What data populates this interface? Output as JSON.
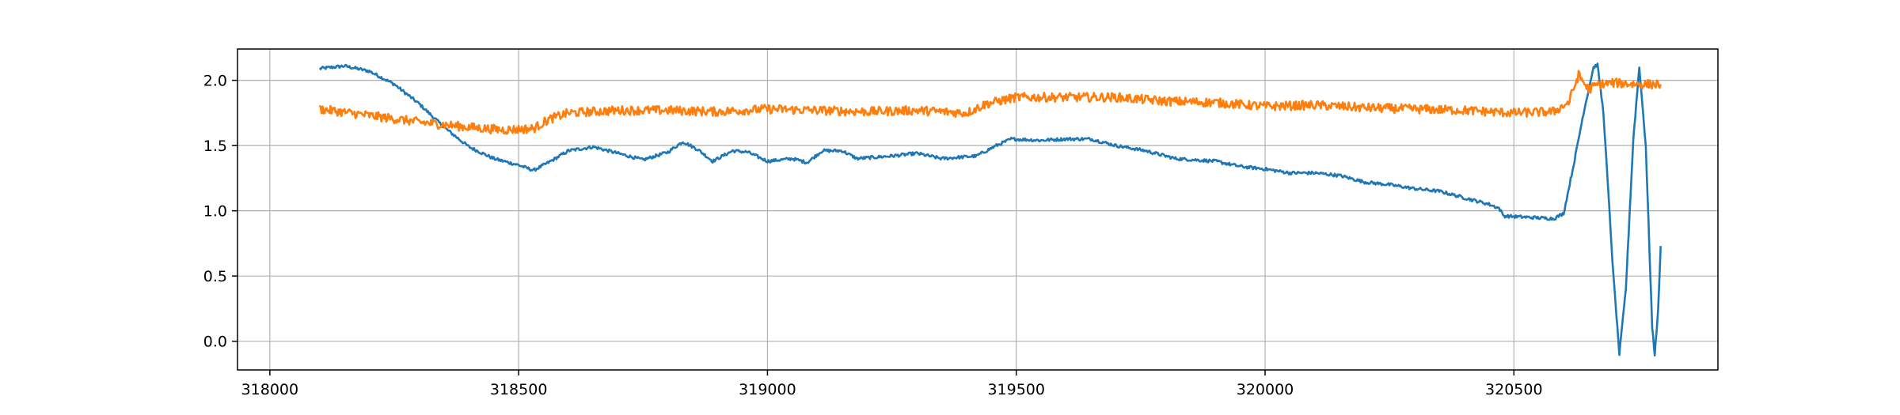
{
  "chart_data": {
    "type": "line",
    "title": "",
    "xlabel": "",
    "ylabel": "",
    "xlim": [
      317935,
      320910
    ],
    "ylim": [
      -0.22,
      2.24
    ],
    "grid": true,
    "legend": "none",
    "x_ticks": [
      318000,
      318500,
      319000,
      319500,
      320000,
      320500
    ],
    "x_tick_labels": [
      "318000",
      "318500",
      "319000",
      "319500",
      "320000",
      "320500"
    ],
    "y_ticks": [
      0.0,
      0.5,
      1.0,
      1.5,
      2.0
    ],
    "y_tick_labels": [
      "0.0",
      "0.5",
      "1.0",
      "1.5",
      "2.0"
    ],
    "series": [
      {
        "color": "#1f77b4",
        "noise": 0.012,
        "points": [
          [
            318100,
            2.09
          ],
          [
            318150,
            2.11
          ],
          [
            318200,
            2.07
          ],
          [
            318250,
            1.97
          ],
          [
            318300,
            1.82
          ],
          [
            318350,
            1.64
          ],
          [
            318400,
            1.49
          ],
          [
            318450,
            1.4
          ],
          [
            318500,
            1.35
          ],
          [
            318530,
            1.31
          ],
          [
            318560,
            1.37
          ],
          [
            318600,
            1.46
          ],
          [
            318650,
            1.49
          ],
          [
            318700,
            1.44
          ],
          [
            318750,
            1.39
          ],
          [
            318800,
            1.45
          ],
          [
            318830,
            1.53
          ],
          [
            318860,
            1.47
          ],
          [
            318890,
            1.38
          ],
          [
            318930,
            1.46
          ],
          [
            318960,
            1.45
          ],
          [
            319000,
            1.38
          ],
          [
            319050,
            1.4
          ],
          [
            319080,
            1.37
          ],
          [
            319110,
            1.46
          ],
          [
            319150,
            1.46
          ],
          [
            319180,
            1.4
          ],
          [
            319250,
            1.42
          ],
          [
            319300,
            1.44
          ],
          [
            319350,
            1.4
          ],
          [
            319420,
            1.42
          ],
          [
            319460,
            1.5
          ],
          [
            319490,
            1.55
          ],
          [
            319550,
            1.54
          ],
          [
            319600,
            1.55
          ],
          [
            319650,
            1.55
          ],
          [
            319700,
            1.5
          ],
          [
            319760,
            1.46
          ],
          [
            319820,
            1.4
          ],
          [
            319900,
            1.38
          ],
          [
            319950,
            1.34
          ],
          [
            320000,
            1.32
          ],
          [
            320050,
            1.29
          ],
          [
            320100,
            1.29
          ],
          [
            320150,
            1.27
          ],
          [
            320200,
            1.22
          ],
          [
            320250,
            1.2
          ],
          [
            320300,
            1.17
          ],
          [
            320350,
            1.15
          ],
          [
            320400,
            1.1
          ],
          [
            320450,
            1.05
          ],
          [
            320470,
            1.02
          ],
          [
            320480,
            0.96
          ],
          [
            320530,
            0.95
          ],
          [
            320580,
            0.94
          ],
          [
            320600,
            0.98
          ],
          [
            320620,
            1.35
          ],
          [
            320640,
            1.75
          ],
          [
            320660,
            2.1
          ],
          [
            320668,
            2.12
          ],
          [
            320680,
            1.75
          ],
          [
            320700,
            0.5
          ],
          [
            320712,
            -0.1
          ],
          [
            320725,
            0.4
          ],
          [
            320740,
            1.55
          ],
          [
            320752,
            2.1
          ],
          [
            320765,
            1.5
          ],
          [
            320778,
            0.1
          ],
          [
            320783,
            -0.1
          ],
          [
            320790,
            0.25
          ],
          [
            320795,
            0.73
          ]
        ]
      },
      {
        "color": "#ff7f0e",
        "noise": 0.035,
        "points": [
          [
            318100,
            1.78
          ],
          [
            318200,
            1.73
          ],
          [
            318300,
            1.68
          ],
          [
            318400,
            1.64
          ],
          [
            318470,
            1.62
          ],
          [
            318530,
            1.63
          ],
          [
            318560,
            1.7
          ],
          [
            318600,
            1.75
          ],
          [
            318700,
            1.77
          ],
          [
            318800,
            1.77
          ],
          [
            318900,
            1.76
          ],
          [
            319000,
            1.78
          ],
          [
            319100,
            1.77
          ],
          [
            319200,
            1.76
          ],
          [
            319300,
            1.77
          ],
          [
            319400,
            1.75
          ],
          [
            319440,
            1.82
          ],
          [
            319500,
            1.87
          ],
          [
            319600,
            1.87
          ],
          [
            319700,
            1.87
          ],
          [
            319800,
            1.84
          ],
          [
            319900,
            1.83
          ],
          [
            320000,
            1.8
          ],
          [
            320100,
            1.81
          ],
          [
            320200,
            1.79
          ],
          [
            320300,
            1.78
          ],
          [
            320400,
            1.77
          ],
          [
            320500,
            1.75
          ],
          [
            320580,
            1.76
          ],
          [
            320610,
            1.83
          ],
          [
            320630,
            2.04
          ],
          [
            320650,
            1.93
          ],
          [
            320670,
            1.97
          ],
          [
            320700,
            1.98
          ],
          [
            320750,
            1.97
          ],
          [
            320795,
            1.97
          ]
        ]
      }
    ]
  }
}
